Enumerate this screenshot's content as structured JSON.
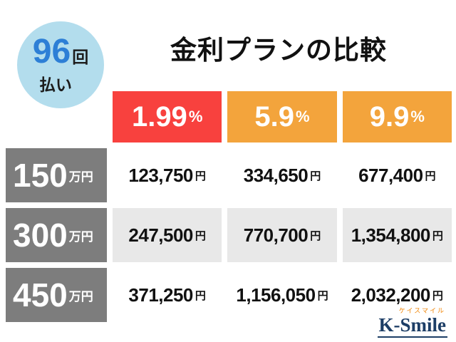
{
  "badge": {
    "count": "96",
    "count_unit": "回",
    "label": "払い"
  },
  "title": "金利プランの比較",
  "table": {
    "rate_headers": [
      {
        "value": "1.99",
        "suffix": "%"
      },
      {
        "value": "5.9",
        "suffix": "%"
      },
      {
        "value": "9.9",
        "suffix": "%"
      }
    ],
    "rows": [
      {
        "amount": "150",
        "amount_unit": "万円",
        "cells": [
          {
            "value": "123,750",
            "suffix": "円"
          },
          {
            "value": "334,650",
            "suffix": "円"
          },
          {
            "value": "677,400",
            "suffix": "円"
          }
        ]
      },
      {
        "amount": "300",
        "amount_unit": "万円",
        "cells": [
          {
            "value": "247,500",
            "suffix": "円"
          },
          {
            "value": "770,700",
            "suffix": "円"
          },
          {
            "value": "1,354,800",
            "suffix": "円"
          }
        ]
      },
      {
        "amount": "450",
        "amount_unit": "万円",
        "cells": [
          {
            "value": "371,250",
            "suffix": "円"
          },
          {
            "value": "1,156,050",
            "suffix": "円"
          },
          {
            "value": "2,032,200",
            "suffix": "円"
          }
        ]
      }
    ]
  },
  "logo": {
    "kana": "ケイスマイル",
    "name": "K-Smile"
  },
  "colors": {
    "rate_red": "#f8413e",
    "rate_orange": "#f3a43c",
    "row_label_gray": "#7d7d7d",
    "alt_row_gray": "#e8e8e8",
    "badge_blue_bg": "#b3dded",
    "badge_number_blue": "#2d7fd6",
    "logo_navy": "#1d3e66",
    "logo_orange": "#f08300"
  },
  "chart_data": {
    "type": "table",
    "title": "金利プランの比較",
    "note": "96回払い",
    "columns": [
      "1.99%",
      "5.9%",
      "9.9%"
    ],
    "row_labels": [
      "150万円",
      "300万円",
      "450万円"
    ],
    "values": [
      [
        "123,750円",
        "334,650円",
        "677,400円"
      ],
      [
        "247,500円",
        "770,700円",
        "1,354,800円"
      ],
      [
        "371,250円",
        "1,156,050円",
        "2,032,200円"
      ]
    ]
  }
}
